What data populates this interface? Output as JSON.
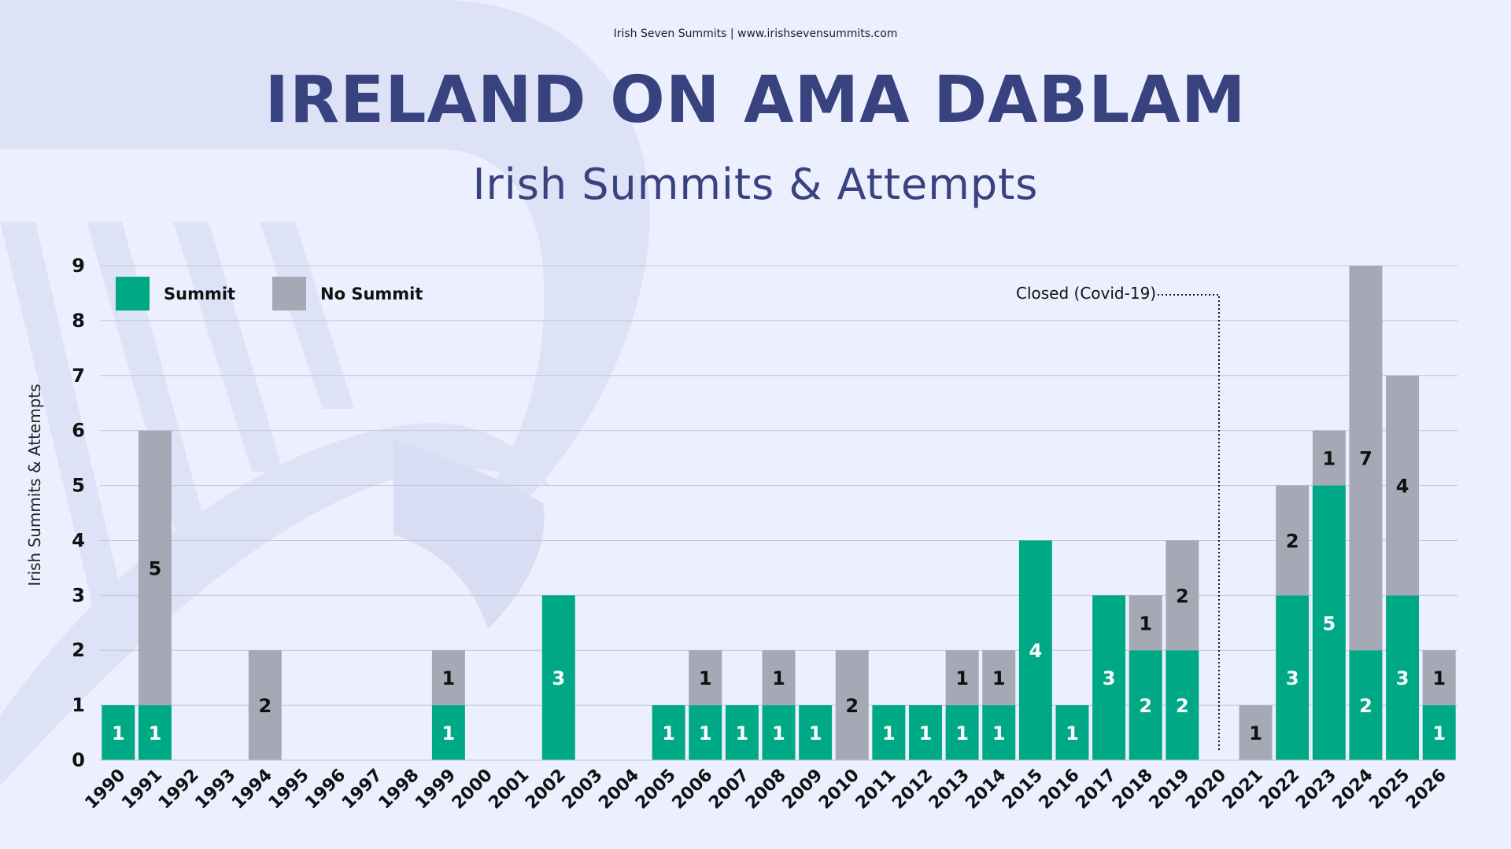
{
  "header": {
    "source": "Irish Seven Summits | www.irishsevensummits.com",
    "title": "IRELAND ON AMA DABLAM",
    "subtitle": "Irish Summits & Attempts"
  },
  "colors": {
    "summit": "#00a985",
    "no_summit": "#a5a9b5",
    "title": "#37427f",
    "background": "#eceffd"
  },
  "chart_data": {
    "type": "bar",
    "stacked": true,
    "title": "IRELAND ON AMA DABLAM",
    "subtitle": "Irish Summits & Attempts",
    "ylabel": "Irish Summits & Attempts",
    "xlabel": "",
    "ylim": [
      0,
      9
    ],
    "yticks": [
      0,
      1,
      2,
      3,
      4,
      5,
      6,
      7,
      8,
      9
    ],
    "grid": true,
    "legend_position": "top-left",
    "categories": [
      "1990",
      "1991",
      "1992",
      "1993",
      "1994",
      "1995",
      "1996",
      "1997",
      "1998",
      "1999",
      "2000",
      "2001",
      "2002",
      "2003",
      "2004",
      "2005",
      "2006",
      "2007",
      "2008",
      "2009",
      "2010",
      "2011",
      "2012",
      "2013",
      "2014",
      "2015",
      "2016",
      "2017",
      "2018",
      "2019",
      "2020",
      "2021",
      "2022",
      "2023",
      "2024",
      "2025",
      "2026"
    ],
    "series": [
      {
        "name": "Summit",
        "color": "#00a985",
        "values": [
          1,
          1,
          0,
          0,
          0,
          0,
          0,
          0,
          0,
          1,
          0,
          0,
          3,
          0,
          0,
          1,
          1,
          1,
          1,
          1,
          0,
          1,
          1,
          1,
          1,
          4,
          1,
          3,
          2,
          2,
          0,
          0,
          3,
          5,
          2,
          3,
          1
        ]
      },
      {
        "name": "No Summit",
        "color": "#a5a9b5",
        "values": [
          0,
          5,
          0,
          0,
          2,
          0,
          0,
          0,
          0,
          1,
          0,
          0,
          0,
          0,
          0,
          0,
          1,
          0,
          1,
          0,
          2,
          0,
          0,
          1,
          1,
          0,
          0,
          0,
          1,
          2,
          0,
          1,
          2,
          1,
          7,
          4,
          1
        ]
      }
    ],
    "annotations": [
      {
        "text": "Closed (Covid-19)",
        "x": "2020"
      }
    ]
  }
}
